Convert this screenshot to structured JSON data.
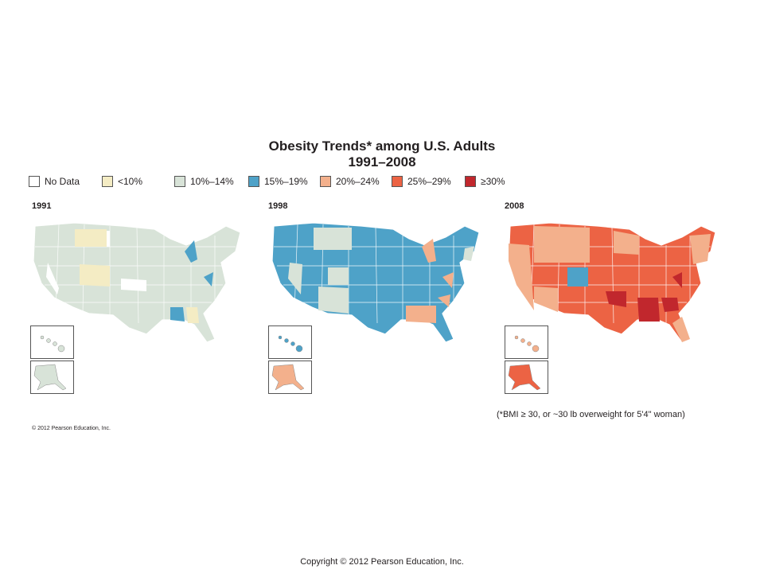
{
  "title": {
    "line1": "Obesity Trends* among U.S. Adults",
    "line2": "1991–2008"
  },
  "legend": [
    {
      "label": "No Data",
      "color": "#ffffff"
    },
    {
      "label": "<10%",
      "color": "#f4ecc4"
    },
    {
      "label": "10%–14%",
      "color": "#d8e3d8"
    },
    {
      "label": "15%–19%",
      "color": "#4ea2c8"
    },
    {
      "label": "20%–24%",
      "color": "#f3b08c"
    },
    {
      "label": "25%–29%",
      "color": "#ec6344"
    },
    {
      "label": "≥30%",
      "color": "#c1272d"
    }
  ],
  "panels": [
    {
      "year": "1991",
      "base_color": "#d8e3d8",
      "alaska_color": "#d8e3d8",
      "hawaii_color": "#d8e3d8"
    },
    {
      "year": "1998",
      "base_color": "#4ea2c8",
      "alaska_color": "#f3b08c",
      "hawaii_color": "#4ea2c8"
    },
    {
      "year": "2008",
      "base_color": "#ec6344",
      "alaska_color": "#ec6344",
      "hawaii_color": "#f3b08c"
    }
  ],
  "note": "(*BMI ≥ 30, or ~30 lb overweight for 5'4\" woman)",
  "credit": "© 2012 Pearson Education, Inc.",
  "footer": "Copyright © 2012 Pearson Education, Inc.",
  "icons": {
    "map": "us-map-icon",
    "alaska": "alaska-icon",
    "hawaii": "hawaii-icon"
  }
}
